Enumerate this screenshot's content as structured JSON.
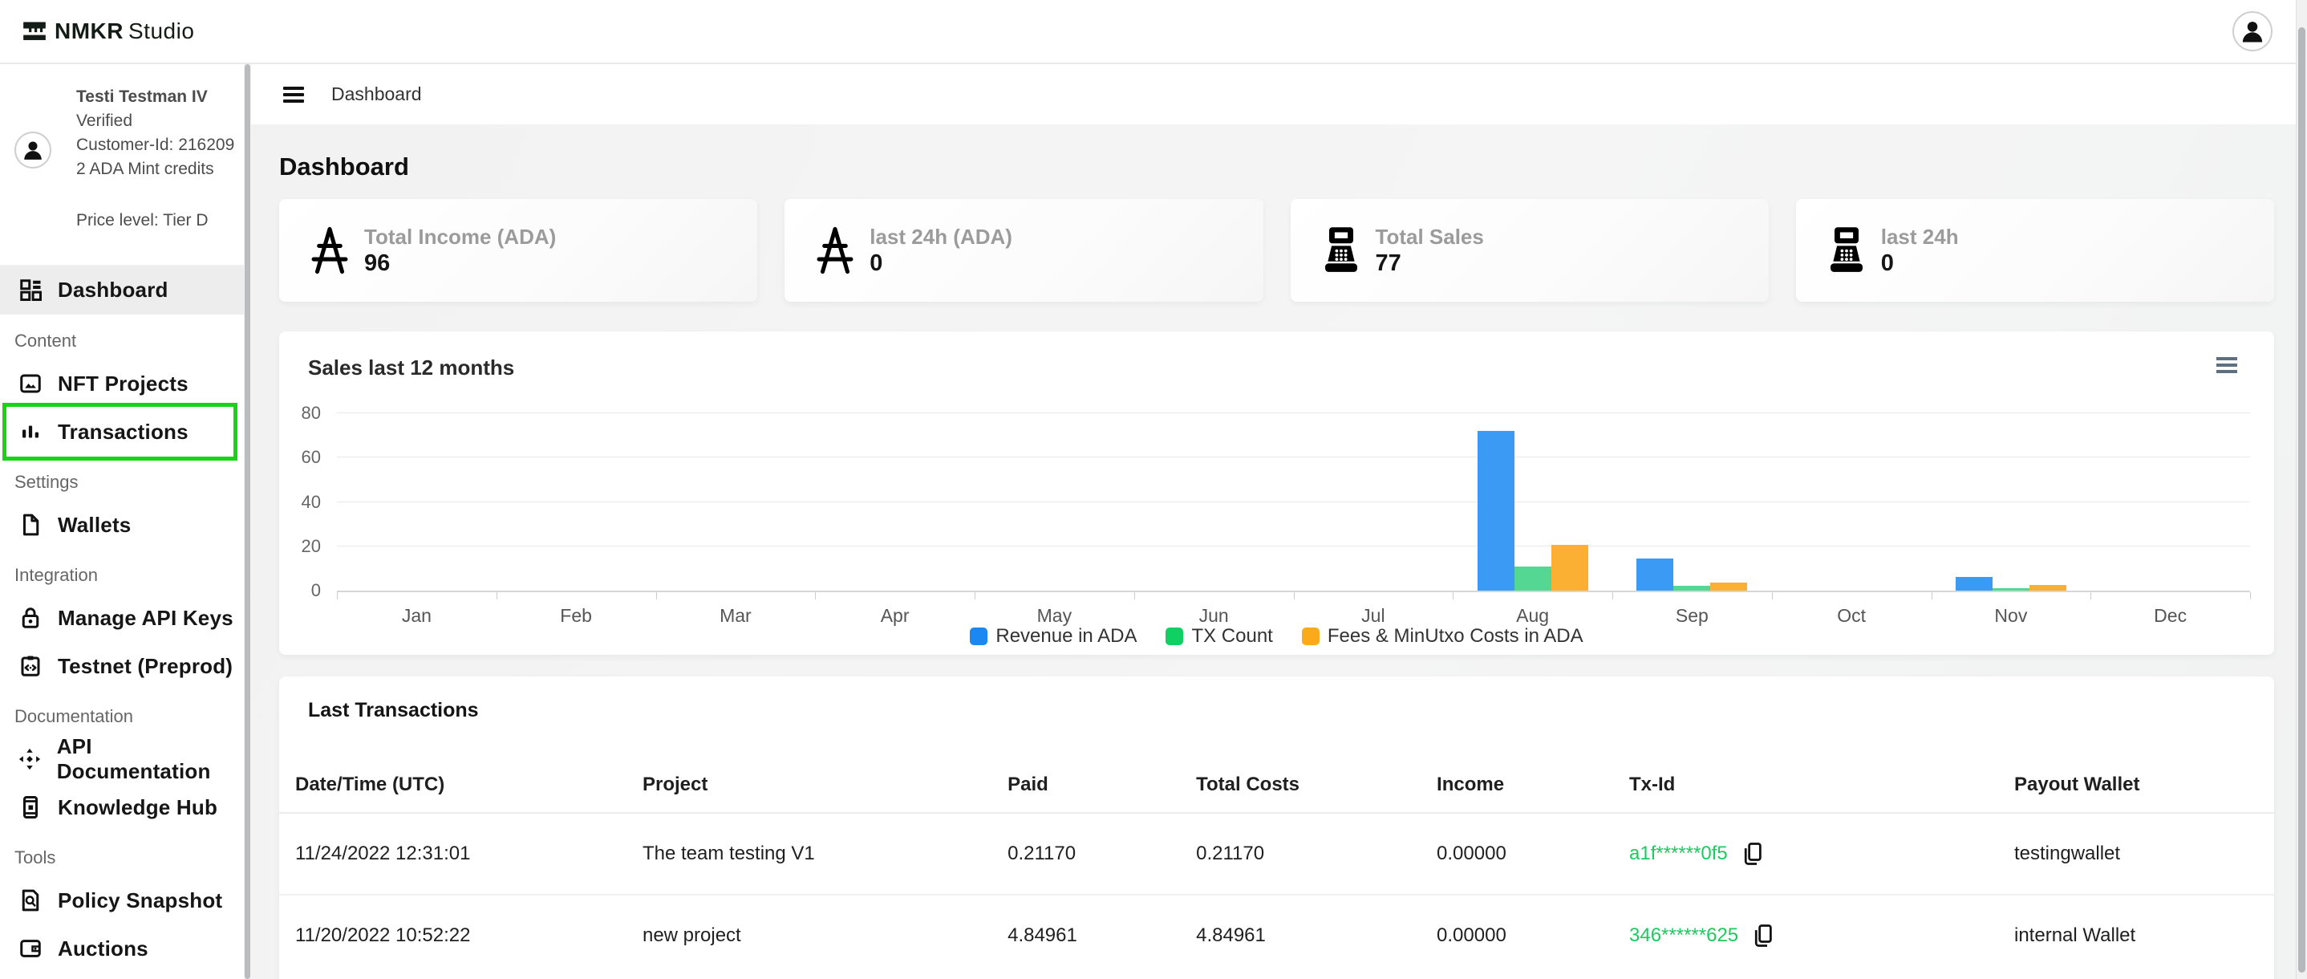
{
  "header": {
    "logo": {
      "bold": "NMKR",
      "regular": "Studio"
    }
  },
  "topbar": {
    "breadcrumb": "Dashboard"
  },
  "sidebar": {
    "user": {
      "name": "Testi Testman IV",
      "status": "Verified",
      "customer_id": "Customer-Id: 216209",
      "credits": "2 ADA Mint credits",
      "price_level": "Price level: Tier D"
    },
    "sections": {
      "content": "Content",
      "settings": "Settings",
      "integration": "Integration",
      "documentation": "Documentation",
      "tools": "Tools"
    },
    "items": {
      "dashboard": "Dashboard",
      "nft_projects": "NFT Projects",
      "transactions": "Transactions",
      "wallets": "Wallets",
      "manage_api_keys": "Manage API Keys",
      "testnet": "Testnet (Preprod)",
      "api_documentation": "API Documentation",
      "knowledge_hub": "Knowledge Hub",
      "policy_snapshot": "Policy Snapshot",
      "auctions": "Auctions"
    }
  },
  "page": {
    "title": "Dashboard"
  },
  "cards": [
    {
      "icon": "ada-symbol",
      "label": "Total Income (ADA)",
      "value": "96"
    },
    {
      "icon": "ada-symbol",
      "label": "last 24h (ADA)",
      "value": "0"
    },
    {
      "icon": "cash-register",
      "label": "Total Sales",
      "value": "77"
    },
    {
      "icon": "cash-register",
      "label": "last 24h",
      "value": "0"
    }
  ],
  "chart_data": {
    "type": "bar",
    "title": "Sales last 12 months",
    "categories": [
      "Jan",
      "Feb",
      "Mar",
      "Apr",
      "May",
      "Jun",
      "Jul",
      "Aug",
      "Sep",
      "Oct",
      "Nov",
      "Dec"
    ],
    "series": [
      {
        "name": "Revenue in ADA",
        "key": "revenue",
        "color": "#3b9af4",
        "legend_color": "#1b87f0",
        "values": [
          0,
          0,
          0,
          0,
          0,
          0,
          0,
          72,
          14.5,
          0,
          6,
          0
        ]
      },
      {
        "name": "TX Count",
        "key": "tx-count",
        "color": "#55d794",
        "legend_color": "#0fd163",
        "values": [
          0,
          0,
          0,
          0,
          0,
          0,
          0,
          11,
          2,
          0,
          1,
          0
        ]
      },
      {
        "name": "Fees & MinUtxo Costs in ADA",
        "key": "fees",
        "color": "#fbb033",
        "legend_color": "#fbab19",
        "values": [
          0,
          0,
          0,
          0,
          0,
          0,
          0,
          20.5,
          3.5,
          0,
          2.5,
          0
        ]
      }
    ],
    "ylim": [
      0,
      80
    ],
    "yticks": [
      0,
      20,
      40,
      60,
      80
    ],
    "grid": true,
    "legend_position": "bottom"
  },
  "table": {
    "title": "Last Transactions",
    "columns": [
      {
        "key": "datetime",
        "label": "Date/Time (UTC)"
      },
      {
        "key": "project",
        "label": "Project"
      },
      {
        "key": "paid",
        "label": "Paid"
      },
      {
        "key": "total_costs",
        "label": "Total Costs"
      },
      {
        "key": "income",
        "label": "Income"
      },
      {
        "key": "tx_id",
        "label": "Tx-Id"
      },
      {
        "key": "payout_wallet",
        "label": "Payout Wallet"
      }
    ],
    "rows": [
      {
        "datetime": "11/24/2022 12:31:01",
        "project": "The team testing V1",
        "paid": "0.21170",
        "total_costs": "0.21170",
        "income": "0.00000",
        "tx_id": "a1f******0f5",
        "payout_wallet": "testingwallet"
      },
      {
        "datetime": "11/20/2022 10:52:22",
        "project": "new project",
        "paid": "4.84961",
        "total_costs": "4.84961",
        "income": "0.00000",
        "tx_id": "346******625",
        "payout_wallet": "internal Wallet"
      }
    ]
  },
  "colors": {
    "highlight_green": "#17d417",
    "link_green": "#1ec95f",
    "verified_green": "#21c45d"
  }
}
